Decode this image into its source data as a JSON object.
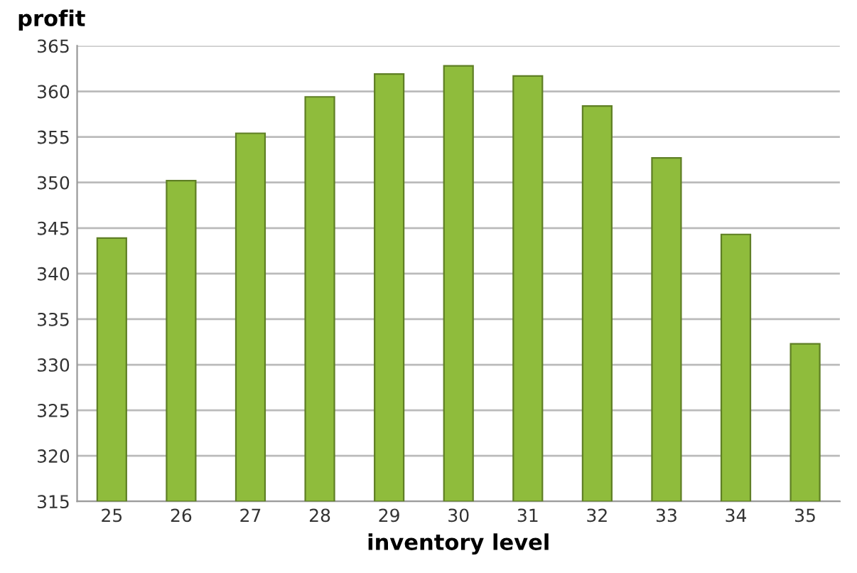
{
  "chart_data": {
    "type": "bar",
    "ylabel": "profit",
    "xlabel": "inventory level",
    "categories": [
      "25",
      "26",
      "27",
      "28",
      "29",
      "30",
      "31",
      "32",
      "33",
      "34",
      "35"
    ],
    "values": [
      343.9,
      350.2,
      355.4,
      359.4,
      361.9,
      362.8,
      361.7,
      358.4,
      352.7,
      344.3,
      332.3
    ],
    "color": "#8fbc3c",
    "ylim": [
      315,
      365
    ],
    "yticks": [
      315,
      320,
      325,
      330,
      335,
      340,
      345,
      350,
      355,
      360,
      365
    ],
    "grid": "y"
  }
}
